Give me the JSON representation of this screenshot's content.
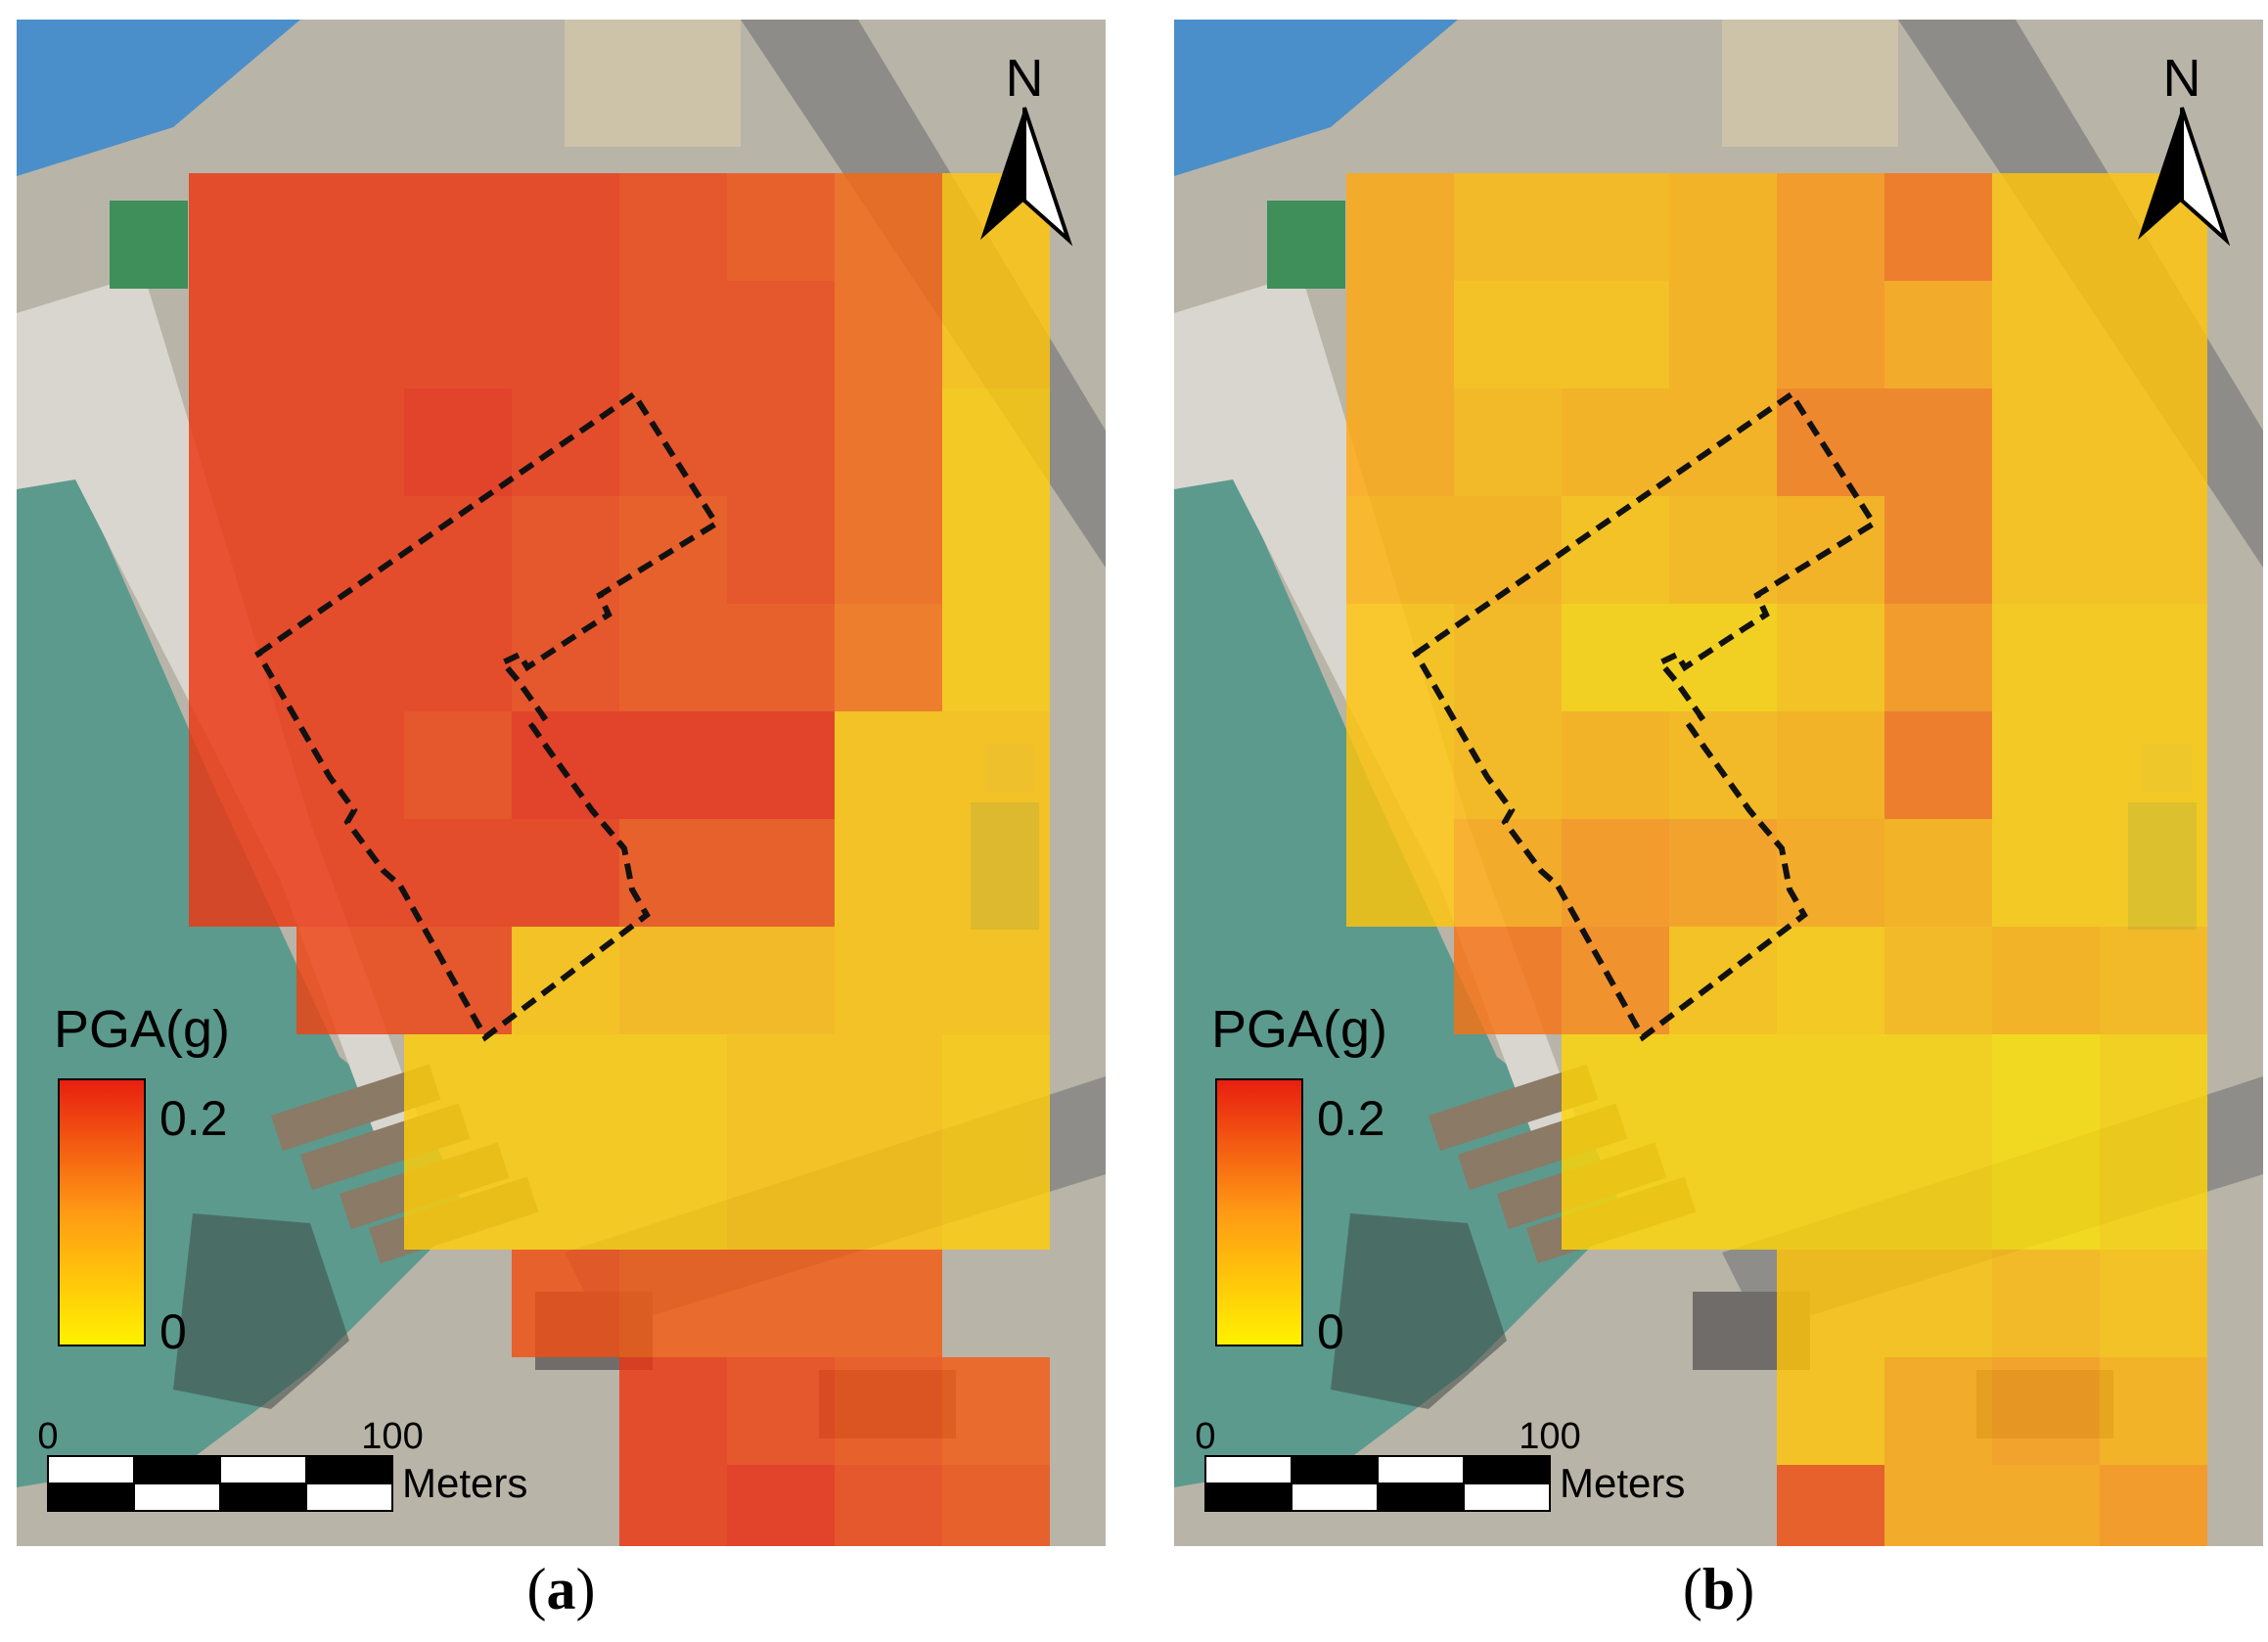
{
  "panels": [
    {
      "id": "a",
      "caption": "a",
      "north_label": "N",
      "legend": {
        "title": "PGA(g)",
        "max_label": "0.2",
        "min_label": "0",
        "max_color": "#e81e10",
        "min_color": "#fff200"
      },
      "scale_bar": {
        "start_label": "0",
        "end_label": "100",
        "unit": "Meters"
      },
      "pga_grid": [
        [
          0.18,
          0.18,
          0.18,
          0.18,
          0.17,
          0.16,
          0.14,
          0.05
        ],
        [
          0.18,
          0.18,
          0.18,
          0.18,
          0.17,
          0.17,
          0.14,
          0.05
        ],
        [
          0.18,
          0.18,
          0.19,
          0.18,
          0.17,
          0.17,
          0.14,
          0.04
        ],
        [
          0.18,
          0.18,
          0.18,
          0.17,
          0.16,
          0.17,
          0.14,
          0.04
        ],
        [
          0.18,
          0.18,
          0.18,
          0.17,
          0.16,
          0.16,
          0.13,
          0.04
        ],
        [
          0.18,
          0.18,
          0.17,
          0.19,
          0.19,
          0.19,
          0.05,
          0.05
        ],
        [
          0.18,
          0.18,
          0.18,
          0.18,
          0.16,
          0.16,
          0.05,
          0.05
        ],
        [
          null,
          0.17,
          0.17,
          0.05,
          0.06,
          0.06,
          0.05,
          0.05
        ],
        [
          null,
          null,
          0.04,
          0.04,
          0.04,
          0.05,
          0.05,
          0.04
        ],
        [
          null,
          null,
          0.04,
          0.04,
          0.04,
          0.05,
          0.05,
          0.04
        ],
        [
          null,
          null,
          null,
          0.16,
          0.15,
          0.15,
          0.15,
          null
        ],
        [
          null,
          null,
          null,
          null,
          0.18,
          0.17,
          0.16,
          0.15
        ],
        [
          null,
          null,
          null,
          null,
          0.18,
          0.19,
          0.17,
          0.16
        ]
      ]
    },
    {
      "id": "b",
      "caption": "b",
      "north_label": "N",
      "legend": {
        "title": "PGA(g)",
        "max_label": "0.2",
        "min_label": "0",
        "max_color": "#e81e10",
        "min_color": "#fff200"
      },
      "scale_bar": {
        "start_label": "0",
        "end_label": "100",
        "unit": "Meters"
      },
      "pga_grid": [
        [
          0.08,
          0.06,
          0.06,
          0.07,
          0.1,
          0.13,
          0.05,
          0.05
        ],
        [
          0.08,
          0.05,
          0.05,
          0.07,
          0.1,
          0.08,
          0.05,
          0.05
        ],
        [
          0.08,
          0.06,
          0.07,
          0.07,
          0.12,
          0.12,
          0.05,
          0.05
        ],
        [
          0.07,
          0.07,
          0.05,
          0.06,
          0.07,
          0.12,
          0.05,
          0.05
        ],
        [
          0.05,
          0.06,
          0.03,
          0.03,
          0.05,
          0.1,
          0.04,
          0.04
        ],
        [
          0.05,
          0.06,
          0.07,
          0.06,
          0.07,
          0.13,
          0.04,
          0.04
        ],
        [
          0.05,
          0.08,
          0.1,
          0.09,
          0.08,
          0.07,
          0.04,
          0.04
        ],
        [
          null,
          0.13,
          0.11,
          0.05,
          0.04,
          0.06,
          0.07,
          0.06
        ],
        [
          null,
          null,
          0.03,
          0.03,
          0.03,
          0.03,
          0.02,
          0.03
        ],
        [
          null,
          null,
          0.03,
          0.03,
          0.03,
          0.03,
          0.02,
          0.03
        ],
        [
          null,
          null,
          null,
          null,
          0.05,
          0.05,
          0.06,
          0.05
        ],
        [
          null,
          null,
          null,
          null,
          0.05,
          0.08,
          0.09,
          0.07
        ],
        [
          null,
          null,
          null,
          null,
          0.16,
          0.08,
          0.08,
          0.1
        ]
      ]
    }
  ]
}
